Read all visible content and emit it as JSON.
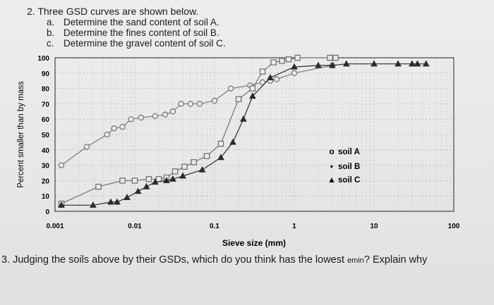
{
  "question2": {
    "title": "2. Three GSD curves are shown below.",
    "items": [
      {
        "letter": "a.",
        "text": "Determine the sand content of soil A."
      },
      {
        "letter": "b.",
        "text": "Determine the fines content of soil B."
      },
      {
        "letter": "c.",
        "text": "Determine the gravel content of soil C."
      }
    ]
  },
  "question3": {
    "prefix": "3. Judging the soils above by their GSDs, which do you think has the lowest ",
    "emin": "emin",
    "suffix": "? Explain why"
  },
  "chart_data": {
    "type": "scatter",
    "xlabel": "Sieve size (mm)",
    "ylabel": "Percent smaller than by mass",
    "x_scale": "log",
    "xlim": [
      0.001,
      100
    ],
    "ylim": [
      0,
      100
    ],
    "x_ticks": [
      {
        "value": 0.001,
        "label": "0.001"
      },
      {
        "value": 0.01,
        "label": "0.01"
      },
      {
        "value": 0.1,
        "label": "0.1"
      },
      {
        "value": 1,
        "label": "1"
      },
      {
        "value": 10,
        "label": "10"
      },
      {
        "value": 100,
        "label": "100"
      }
    ],
    "y_ticks": [
      0,
      10,
      20,
      30,
      40,
      50,
      60,
      70,
      80,
      90,
      100
    ],
    "grid": true,
    "legend_position": "right",
    "series": [
      {
        "name": "soil A",
        "marker": "circle",
        "x": [
          0.0012,
          0.0025,
          0.0045,
          0.0055,
          0.007,
          0.009,
          0.012,
          0.018,
          0.024,
          0.03,
          0.038,
          0.05,
          0.065,
          0.1,
          0.16,
          0.28,
          0.4,
          0.5,
          0.6,
          1.0,
          3.0
        ],
        "y": [
          30,
          42,
          50,
          54,
          55,
          60,
          61,
          62,
          63,
          65,
          70,
          70,
          70,
          72,
          80,
          82,
          84,
          85,
          86,
          90,
          95
        ]
      },
      {
        "name": "soil B",
        "marker": "square",
        "x": [
          0.0012,
          0.0035,
          0.007,
          0.01,
          0.015,
          0.02,
          0.025,
          0.032,
          0.042,
          0.055,
          0.08,
          0.12,
          0.2,
          0.3,
          0.4,
          0.55,
          0.7,
          0.85,
          1.1,
          2.8,
          3.3
        ],
        "y": [
          5,
          16,
          20,
          20,
          21,
          21,
          22,
          26,
          29,
          32,
          36,
          44,
          73,
          80,
          91,
          97,
          98,
          99,
          100,
          100,
          100
        ]
      },
      {
        "name": "soil C",
        "marker": "triangle",
        "x": [
          0.0012,
          0.003,
          0.005,
          0.006,
          0.008,
          0.011,
          0.014,
          0.018,
          0.025,
          0.03,
          0.04,
          0.07,
          0.12,
          0.17,
          0.23,
          0.3,
          0.5,
          1.0,
          2.0,
          3.0,
          4.5,
          10,
          20,
          30,
          35,
          45
        ],
        "y": [
          4,
          4,
          6,
          6,
          9,
          13,
          16,
          19,
          20,
          21,
          23,
          27,
          35,
          45,
          60,
          75,
          87,
          94,
          95,
          95,
          96,
          96,
          96,
          96,
          96,
          96
        ]
      }
    ]
  }
}
